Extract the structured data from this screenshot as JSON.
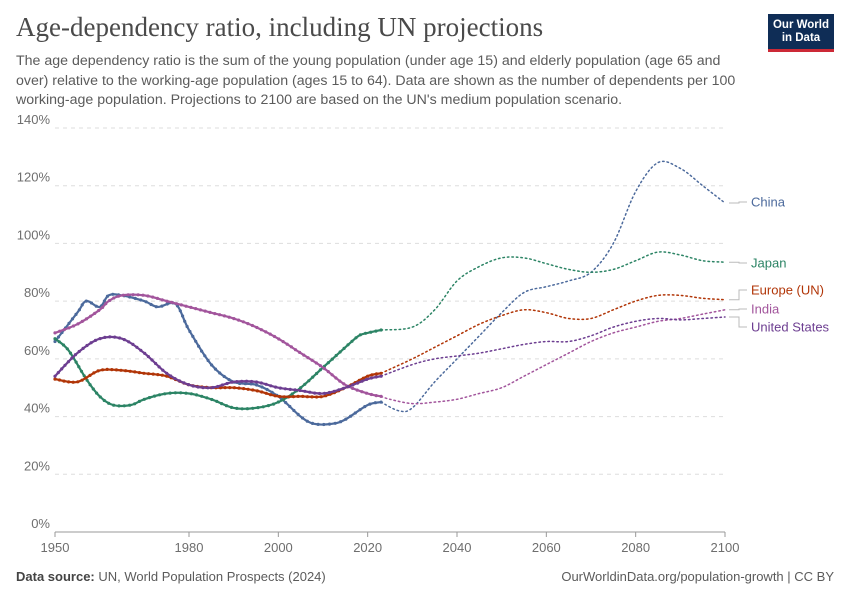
{
  "header": {
    "title": "Age-dependency ratio, including UN projections",
    "subtitle": "The age dependency ratio is the sum of the young population (under age 15) and elderly population (age 65 and over) relative to the working-age population (ages 15 to 64). Data are shown as the number of dependents per 100 working-age population. Projections to 2100 are based on the UN's medium population scenario.",
    "logo_line1": "Our World",
    "logo_line2": "in Data"
  },
  "footer": {
    "source_label": "Data source:",
    "source_text": "UN, World Population Prospects (2024)",
    "right_text": "OurWorldinData.org/population-growth | CC BY"
  },
  "chart_data": {
    "type": "line",
    "title": "Age-dependency ratio, including UN projections",
    "ylim": [
      0,
      140
    ],
    "xlim": [
      1950,
      2100
    ],
    "y_ticks": [
      0,
      20,
      40,
      60,
      80,
      100,
      120,
      140
    ],
    "y_tick_labels": [
      "0%",
      "20%",
      "40%",
      "60%",
      "80%",
      "100%",
      "120%",
      "140%"
    ],
    "x_ticks": [
      1950,
      1980,
      2000,
      2020,
      2040,
      2060,
      2080,
      2100
    ],
    "x_tick_labels": [
      "1950",
      "1980",
      "2000",
      "2020",
      "2040",
      "2060",
      "2080",
      "2100"
    ],
    "grid": "horizontal dashed",
    "legend": "right-side line labels",
    "historical_end": 2023,
    "series": [
      {
        "name": "China",
        "color": "#4c6a9c",
        "historical": [
          [
            1950,
            66
          ],
          [
            1955,
            76
          ],
          [
            1957,
            80
          ],
          [
            1960,
            78
          ],
          [
            1962,
            82
          ],
          [
            1965,
            82
          ],
          [
            1970,
            80
          ],
          [
            1973,
            78
          ],
          [
            1977,
            79
          ],
          [
            1980,
            70
          ],
          [
            1985,
            58
          ],
          [
            1990,
            52
          ],
          [
            1995,
            51
          ],
          [
            2000,
            47
          ],
          [
            2005,
            40
          ],
          [
            2008,
            37.5
          ],
          [
            2012,
            37.5
          ],
          [
            2015,
            39
          ],
          [
            2020,
            44
          ],
          [
            2023,
            45
          ]
        ],
        "projection": [
          [
            2023,
            45
          ],
          [
            2027,
            42
          ],
          [
            2030,
            43
          ],
          [
            2035,
            52
          ],
          [
            2040,
            60
          ],
          [
            2045,
            68
          ],
          [
            2050,
            76
          ],
          [
            2055,
            83
          ],
          [
            2060,
            85
          ],
          [
            2065,
            87
          ],
          [
            2070,
            90
          ],
          [
            2075,
            100
          ],
          [
            2080,
            118
          ],
          [
            2085,
            128
          ],
          [
            2090,
            126
          ],
          [
            2095,
            120
          ],
          [
            2100,
            114
          ]
        ]
      },
      {
        "name": "Japan",
        "color": "#2c8465",
        "historical": [
          [
            1950,
            67
          ],
          [
            1953,
            63
          ],
          [
            1957,
            53
          ],
          [
            1960,
            47
          ],
          [
            1963,
            44
          ],
          [
            1967,
            44
          ],
          [
            1970,
            46
          ],
          [
            1975,
            48
          ],
          [
            1980,
            48
          ],
          [
            1985,
            46
          ],
          [
            1990,
            43
          ],
          [
            1995,
            43
          ],
          [
            2000,
            45
          ],
          [
            2005,
            50
          ],
          [
            2010,
            57
          ],
          [
            2015,
            64
          ],
          [
            2018,
            68
          ],
          [
            2020,
            69
          ],
          [
            2023,
            70
          ]
        ],
        "projection": [
          [
            2023,
            70
          ],
          [
            2030,
            71
          ],
          [
            2035,
            77
          ],
          [
            2040,
            87
          ],
          [
            2045,
            92
          ],
          [
            2050,
            95
          ],
          [
            2055,
            95
          ],
          [
            2060,
            93
          ],
          [
            2065,
            91
          ],
          [
            2070,
            90
          ],
          [
            2075,
            91
          ],
          [
            2080,
            94
          ],
          [
            2085,
            97
          ],
          [
            2090,
            96
          ],
          [
            2095,
            94
          ],
          [
            2100,
            93.5
          ]
        ]
      },
      {
        "name": "Europe (UN)",
        "color": "#b13507",
        "historical": [
          [
            1950,
            53
          ],
          [
            1955,
            52
          ],
          [
            1960,
            56
          ],
          [
            1965,
            56
          ],
          [
            1970,
            55
          ],
          [
            1975,
            54
          ],
          [
            1980,
            51
          ],
          [
            1985,
            50
          ],
          [
            1990,
            50
          ],
          [
            1995,
            49
          ],
          [
            2000,
            47
          ],
          [
            2005,
            47
          ],
          [
            2010,
            47
          ],
          [
            2015,
            50
          ],
          [
            2020,
            54
          ],
          [
            2023,
            55
          ]
        ],
        "projection": [
          [
            2023,
            55
          ],
          [
            2030,
            60
          ],
          [
            2035,
            64
          ],
          [
            2040,
            68
          ],
          [
            2045,
            72
          ],
          [
            2050,
            75
          ],
          [
            2055,
            77
          ],
          [
            2060,
            76
          ],
          [
            2065,
            74
          ],
          [
            2070,
            74
          ],
          [
            2075,
            77
          ],
          [
            2080,
            80
          ],
          [
            2085,
            82
          ],
          [
            2090,
            82
          ],
          [
            2095,
            81
          ],
          [
            2100,
            80.5
          ]
        ]
      },
      {
        "name": "India",
        "color": "#a2559c",
        "historical": [
          [
            1950,
            69
          ],
          [
            1955,
            72
          ],
          [
            1960,
            77
          ],
          [
            1962,
            80
          ],
          [
            1965,
            82
          ],
          [
            1970,
            82
          ],
          [
            1975,
            80
          ],
          [
            1980,
            78
          ],
          [
            1985,
            76
          ],
          [
            1990,
            74
          ],
          [
            1995,
            71
          ],
          [
            2000,
            67
          ],
          [
            2005,
            62
          ],
          [
            2010,
            57
          ],
          [
            2015,
            51
          ],
          [
            2020,
            48
          ],
          [
            2023,
            47
          ]
        ],
        "projection": [
          [
            2023,
            47
          ],
          [
            2025,
            46
          ],
          [
            2030,
            44.5
          ],
          [
            2035,
            45
          ],
          [
            2040,
            46
          ],
          [
            2045,
            48
          ],
          [
            2050,
            50
          ],
          [
            2055,
            54
          ],
          [
            2060,
            58
          ],
          [
            2065,
            62
          ],
          [
            2070,
            66
          ],
          [
            2075,
            69
          ],
          [
            2080,
            71
          ],
          [
            2085,
            73
          ],
          [
            2090,
            74
          ],
          [
            2095,
            75.5
          ],
          [
            2100,
            77
          ]
        ]
      },
      {
        "name": "United States",
        "color": "#6d3e91",
        "historical": [
          [
            1950,
            54
          ],
          [
            1955,
            62
          ],
          [
            1960,
            67
          ],
          [
            1965,
            67
          ],
          [
            1970,
            62
          ],
          [
            1975,
            55
          ],
          [
            1980,
            51
          ],
          [
            1985,
            50
          ],
          [
            1990,
            52
          ],
          [
            1995,
            52
          ],
          [
            2000,
            50
          ],
          [
            2005,
            49
          ],
          [
            2010,
            48
          ],
          [
            2015,
            50
          ],
          [
            2020,
            53
          ],
          [
            2023,
            54
          ]
        ],
        "projection": [
          [
            2023,
            54
          ],
          [
            2030,
            58
          ],
          [
            2035,
            60
          ],
          [
            2040,
            61
          ],
          [
            2045,
            62
          ],
          [
            2050,
            63.5
          ],
          [
            2055,
            65
          ],
          [
            2060,
            66
          ],
          [
            2065,
            66
          ],
          [
            2070,
            68
          ],
          [
            2075,
            71
          ],
          [
            2080,
            73
          ],
          [
            2085,
            74
          ],
          [
            2090,
            73.5
          ],
          [
            2095,
            74
          ],
          [
            2100,
            74.5
          ]
        ]
      }
    ]
  }
}
